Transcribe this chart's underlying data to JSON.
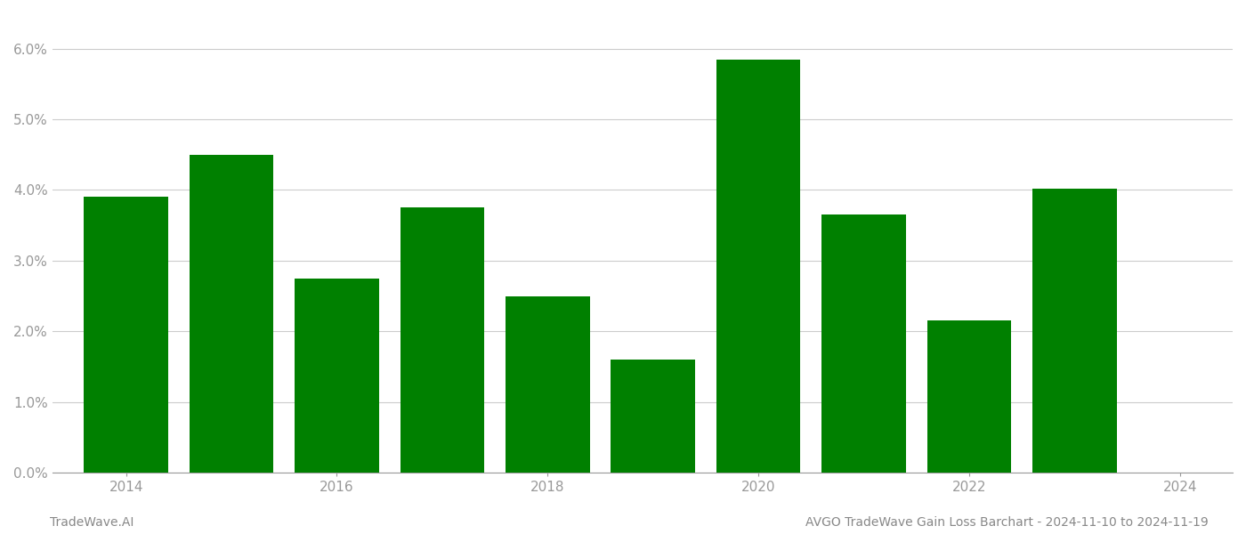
{
  "years": [
    2014,
    2015,
    2016,
    2017,
    2018,
    2019,
    2020,
    2021,
    2022,
    2023
  ],
  "values": [
    0.039,
    0.045,
    0.0275,
    0.0375,
    0.025,
    0.016,
    0.0585,
    0.0365,
    0.0215,
    0.0402
  ],
  "bar_color": "#008000",
  "background_color": "#ffffff",
  "ylim": [
    0,
    0.065
  ],
  "yticks": [
    0.0,
    0.01,
    0.02,
    0.03,
    0.04,
    0.05,
    0.06
  ],
  "xticks": [
    2014,
    2016,
    2018,
    2020,
    2022,
    2024
  ],
  "xlim": [
    2013.3,
    2024.5
  ],
  "bar_width": 0.8,
  "footer_left": "TradeWave.AI",
  "footer_right": "AVGO TradeWave Gain Loss Barchart - 2024-11-10 to 2024-11-19",
  "grid_color": "#cccccc",
  "tick_color": "#999999",
  "footer_color": "#888888",
  "tick_fontsize": 11,
  "footer_fontsize": 10
}
